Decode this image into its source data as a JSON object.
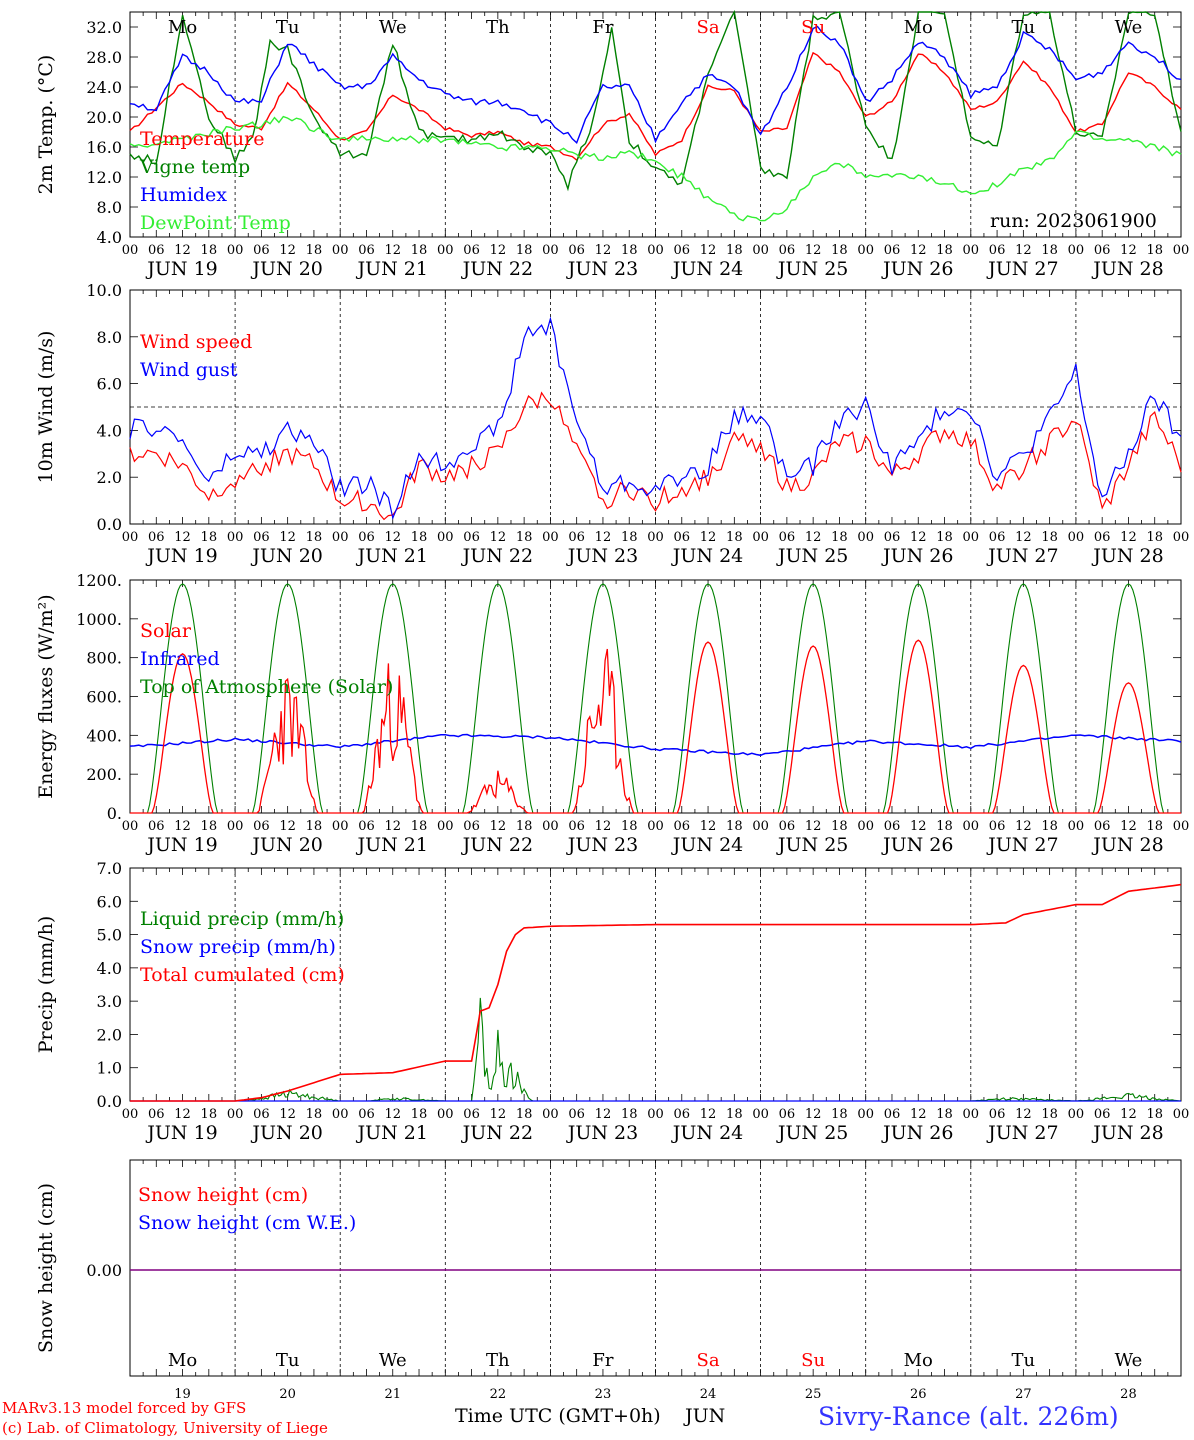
{
  "meta": {
    "run": "run: 2023061900",
    "station": "Sivry-Rance (alt. 226m)",
    "credit1": "MARv3.13 model forced by GFS",
    "credit2": "(c) Lab. of Climatology, University of Liege",
    "xlabel": "Time UTC (GMT+0h)",
    "month": "JUN",
    "hour_ticks": [
      "00",
      "06",
      "12",
      "18"
    ],
    "last_hour_tick": "00",
    "date_labels": [
      "JUN 19",
      "JUN 20",
      "JUN 21",
      "JUN 22",
      "JUN 23",
      "JUN 24",
      "JUN 25",
      "JUN 26",
      "JUN 27",
      "JUN 28"
    ],
    "day_nums": [
      "19",
      "20",
      "21",
      "22",
      "23",
      "24",
      "25",
      "26",
      "27",
      "28"
    ],
    "weekdays": [
      {
        "label": "Mo",
        "weekend": false
      },
      {
        "label": "Tu",
        "weekend": false
      },
      {
        "label": "We",
        "weekend": false
      },
      {
        "label": "Th",
        "weekend": false
      },
      {
        "label": "Fr",
        "weekend": false
      },
      {
        "label": "Sa",
        "weekend": true
      },
      {
        "label": "Su",
        "weekend": true
      },
      {
        "label": "Mo",
        "weekend": false
      },
      {
        "label": "Tu",
        "weekend": false
      },
      {
        "label": "We",
        "weekend": false
      }
    ]
  },
  "colors": {
    "red": "#ff0000",
    "green": "#008000",
    "blue": "#0000ff",
    "lime": "#33ee33",
    "purple": "#800080",
    "black": "#000000"
  },
  "chart_data": [
    {
      "type": "line",
      "ylabel": "2m Temp. (°C)",
      "ylim": [
        4,
        34
      ],
      "yticks": [
        "4.0",
        "8.0",
        "12.0",
        "16.0",
        "20.0",
        "24.0",
        "28.0",
        "32.0"
      ],
      "yticks_values": [
        4,
        8,
        12,
        16,
        20,
        24,
        28,
        32
      ],
      "grid": false,
      "legend": "upper-left",
      "show_weekdays": true,
      "x_unit": "hours since JUN 19 00 UTC (axis labelled in day/hour ticks)",
      "series": [
        {
          "name": "Temperature",
          "color": "red",
          "x": [
            0,
            12,
            18,
            24,
            30,
            36,
            42,
            48,
            54,
            60,
            66,
            72,
            78,
            84,
            90,
            96,
            102,
            108,
            114,
            120,
            126,
            132,
            138,
            144,
            150,
            156,
            162,
            168,
            174,
            180,
            186,
            192,
            198,
            204,
            210,
            216,
            222,
            228,
            234,
            240
          ],
          "values": [
            18,
            24.5,
            22,
            19,
            18.5,
            24.5,
            21,
            17,
            18,
            23,
            21,
            18.5,
            17.5,
            18,
            16.5,
            16,
            14.5,
            19,
            20.5,
            15,
            17,
            24,
            23.5,
            18,
            18.5,
            28.5,
            26,
            20,
            22,
            28.5,
            26,
            21,
            22,
            27.5,
            24,
            18,
            19,
            26,
            24,
            21
          ]
        },
        {
          "name": "Vigne temp",
          "color": "green",
          "x": [
            0,
            6,
            12,
            18,
            24,
            28,
            32,
            36,
            42,
            48,
            54,
            60,
            66,
            72,
            78,
            84,
            90,
            96,
            100,
            106,
            110,
            114,
            120,
            126,
            132,
            138,
            144,
            150,
            156,
            162,
            168,
            174,
            180,
            186,
            192,
            198,
            204,
            210,
            216,
            222,
            228,
            234,
            240
          ],
          "values": [
            15,
            14,
            34,
            20,
            14.5,
            17,
            30,
            29,
            20,
            15,
            15,
            30,
            18,
            17,
            17,
            18,
            16,
            15,
            11,
            20,
            32,
            17,
            13,
            11,
            26,
            34,
            13,
            12,
            33,
            34,
            19,
            14,
            34,
            34,
            17,
            16,
            34,
            34,
            18,
            17,
            34,
            34,
            18
          ]
        },
        {
          "name": "Humidex",
          "color": "blue",
          "x": [
            0,
            6,
            12,
            18,
            24,
            30,
            36,
            42,
            48,
            54,
            60,
            66,
            72,
            78,
            84,
            90,
            96,
            102,
            108,
            114,
            120,
            126,
            132,
            138,
            144,
            150,
            156,
            162,
            168,
            174,
            180,
            186,
            192,
            198,
            204,
            210,
            216,
            222,
            228,
            234,
            240
          ],
          "values": [
            22,
            21,
            28,
            26,
            22,
            22,
            30,
            27,
            24,
            24,
            28,
            25,
            23,
            22,
            22,
            21,
            19,
            17,
            24,
            24,
            17,
            22,
            25.5,
            24,
            17.5,
            24,
            32,
            30,
            22,
            25,
            30,
            28,
            23,
            24,
            31,
            29,
            25,
            26,
            30,
            28,
            25
          ]
        },
        {
          "name": "DewPoint Temp",
          "color": "lime",
          "x": [
            0,
            12,
            24,
            30,
            36,
            48,
            60,
            72,
            84,
            96,
            102,
            108,
            114,
            120,
            126,
            132,
            138,
            144,
            150,
            156,
            162,
            168,
            174,
            180,
            186,
            192,
            198,
            204,
            210,
            216,
            222,
            228,
            234,
            240
          ],
          "values": [
            16,
            17,
            18.5,
            19,
            20,
            17,
            17,
            17,
            16,
            16,
            15,
            14.5,
            15.5,
            14,
            12,
            9,
            7,
            6,
            8,
            12,
            14,
            12,
            12,
            12,
            11,
            10,
            11,
            13,
            14,
            18,
            17,
            17,
            16,
            15
          ]
        }
      ]
    },
    {
      "type": "line",
      "ylabel": "10m Wind (m/s)",
      "ylim": [
        0,
        10
      ],
      "yticks": [
        "0.0",
        "2.0",
        "4.0",
        "6.0",
        "8.0",
        "10.0"
      ],
      "yticks_values": [
        0,
        2,
        4,
        6,
        8,
        10
      ],
      "hline": 5,
      "legend": "upper-left",
      "series": [
        {
          "name": "Wind speed",
          "color": "red",
          "x": [
            0,
            6,
            12,
            18,
            24,
            30,
            36,
            42,
            48,
            54,
            60,
            66,
            72,
            78,
            84,
            90,
            96,
            102,
            108,
            114,
            120,
            126,
            132,
            138,
            144,
            150,
            156,
            162,
            168,
            174,
            180,
            186,
            192,
            198,
            204,
            210,
            216,
            222,
            228,
            234,
            240
          ],
          "values": [
            3,
            3,
            2.5,
            1.2,
            2,
            2.5,
            3,
            2.5,
            1,
            1,
            0.2,
            2.5,
            2,
            2.5,
            3,
            5,
            5.5,
            3,
            1,
            1.5,
            1,
            1.5,
            2,
            3.5,
            3.5,
            1.5,
            2,
            3.5,
            3.5,
            2,
            3,
            4,
            3.5,
            1.5,
            2.5,
            3.5,
            4.5,
            0.5,
            2.5,
            4.5,
            2.5
          ]
        },
        {
          "name": "Wind gust",
          "color": "blue",
          "x": [
            0,
            6,
            12,
            18,
            24,
            30,
            36,
            42,
            48,
            54,
            60,
            66,
            72,
            78,
            84,
            90,
            96,
            102,
            108,
            114,
            120,
            126,
            132,
            138,
            144,
            150,
            156,
            162,
            168,
            174,
            180,
            186,
            192,
            198,
            204,
            210,
            216,
            222,
            228,
            234,
            240
          ],
          "values": [
            4,
            4.2,
            3.5,
            1.8,
            3,
            3,
            4,
            3.5,
            1.5,
            1.8,
            0.5,
            3,
            2.5,
            3.5,
            4,
            8,
            8.5,
            4.5,
            1.5,
            1.8,
            1.5,
            2,
            2.5,
            4.5,
            4.8,
            2,
            2.5,
            4.5,
            5,
            2.5,
            3.5,
            5,
            5,
            2,
            3,
            4.5,
            6.5,
            1,
            3,
            5.5,
            3.5
          ]
        }
      ]
    },
    {
      "type": "line",
      "ylabel": "Energy fluxes (W/m²)",
      "ylim": [
        0,
        1200
      ],
      "yticks": [
        "0.",
        "200.",
        "400.",
        "600.",
        "800.",
        "1000.",
        "1200."
      ],
      "yticks_values": [
        0,
        200,
        400,
        600,
        800,
        1000,
        1200
      ],
      "legend": "upper-left",
      "series": [
        {
          "name": "Solar",
          "color": "red",
          "daily_peak": [
            820,
            700,
            750,
            200,
            800,
            880,
            860,
            890,
            760,
            670
          ]
        },
        {
          "name": "Infrared",
          "color": "blue",
          "x": [
            0,
            24,
            48,
            72,
            96,
            120,
            144,
            168,
            192,
            216,
            240
          ],
          "values": [
            340,
            380,
            340,
            400,
            390,
            330,
            300,
            370,
            340,
            400,
            370
          ]
        },
        {
          "name": "Top of Atmosphere (Solar)",
          "color": "green",
          "daily_peak": [
            1180,
            1180,
            1180,
            1180,
            1180,
            1180,
            1180,
            1180,
            1180,
            1180
          ]
        }
      ]
    },
    {
      "type": "line",
      "ylabel": "Precip (mm/h)",
      "ylim": [
        0,
        7
      ],
      "yticks": [
        "0.0",
        "1.0",
        "2.0",
        "3.0",
        "4.0",
        "5.0",
        "6.0",
        "7.0"
      ],
      "yticks_values": [
        0,
        1,
        2,
        3,
        4,
        5,
        6,
        7
      ],
      "legend": "upper-left",
      "series": [
        {
          "name": "Liquid precip (mm/h)",
          "color": "green",
          "x": [
            0,
            24,
            30,
            36,
            42,
            48,
            54,
            60,
            66,
            72,
            78,
            80,
            82,
            84,
            86,
            88,
            90,
            92,
            96,
            120,
            192,
            200,
            216,
            228,
            240
          ],
          "values": [
            0,
            0,
            0.1,
            0.3,
            0.15,
            0,
            0,
            0.1,
            0.05,
            0,
            0,
            3,
            0.5,
            1.8,
            1,
            1.2,
            0.3,
            0,
            0,
            0,
            0,
            0.1,
            0,
            0.2,
            0
          ]
        },
        {
          "name": "Snow precip (mm/h)",
          "color": "blue",
          "x": [
            0,
            240
          ],
          "values": [
            0,
            0
          ]
        },
        {
          "name": "Total cumulated (cm)",
          "color": "red",
          "x": [
            0,
            24,
            30,
            36,
            48,
            60,
            72,
            78,
            80,
            82,
            84,
            86,
            88,
            90,
            96,
            120,
            144,
            168,
            192,
            200,
            204,
            216,
            222,
            228,
            240
          ],
          "values": [
            0,
            0,
            0.1,
            0.3,
            0.8,
            0.85,
            1.2,
            1.2,
            2.7,
            2.8,
            3.5,
            4.5,
            5.0,
            5.2,
            5.25,
            5.3,
            5.3,
            5.3,
            5.3,
            5.35,
            5.6,
            5.9,
            5.9,
            6.3,
            6.5
          ]
        }
      ]
    },
    {
      "type": "line",
      "ylabel": "Snow height (cm)",
      "yticks": [
        "0.00"
      ],
      "legend": "upper-left",
      "series": [
        {
          "name": "Snow height (cm)",
          "color": "red",
          "x": [
            0,
            240
          ],
          "values": [
            0,
            0
          ]
        },
        {
          "name": "Snow height (cm W.E.)",
          "color": "blue",
          "x": [
            0,
            240
          ],
          "values": [
            0,
            0
          ]
        }
      ]
    }
  ]
}
